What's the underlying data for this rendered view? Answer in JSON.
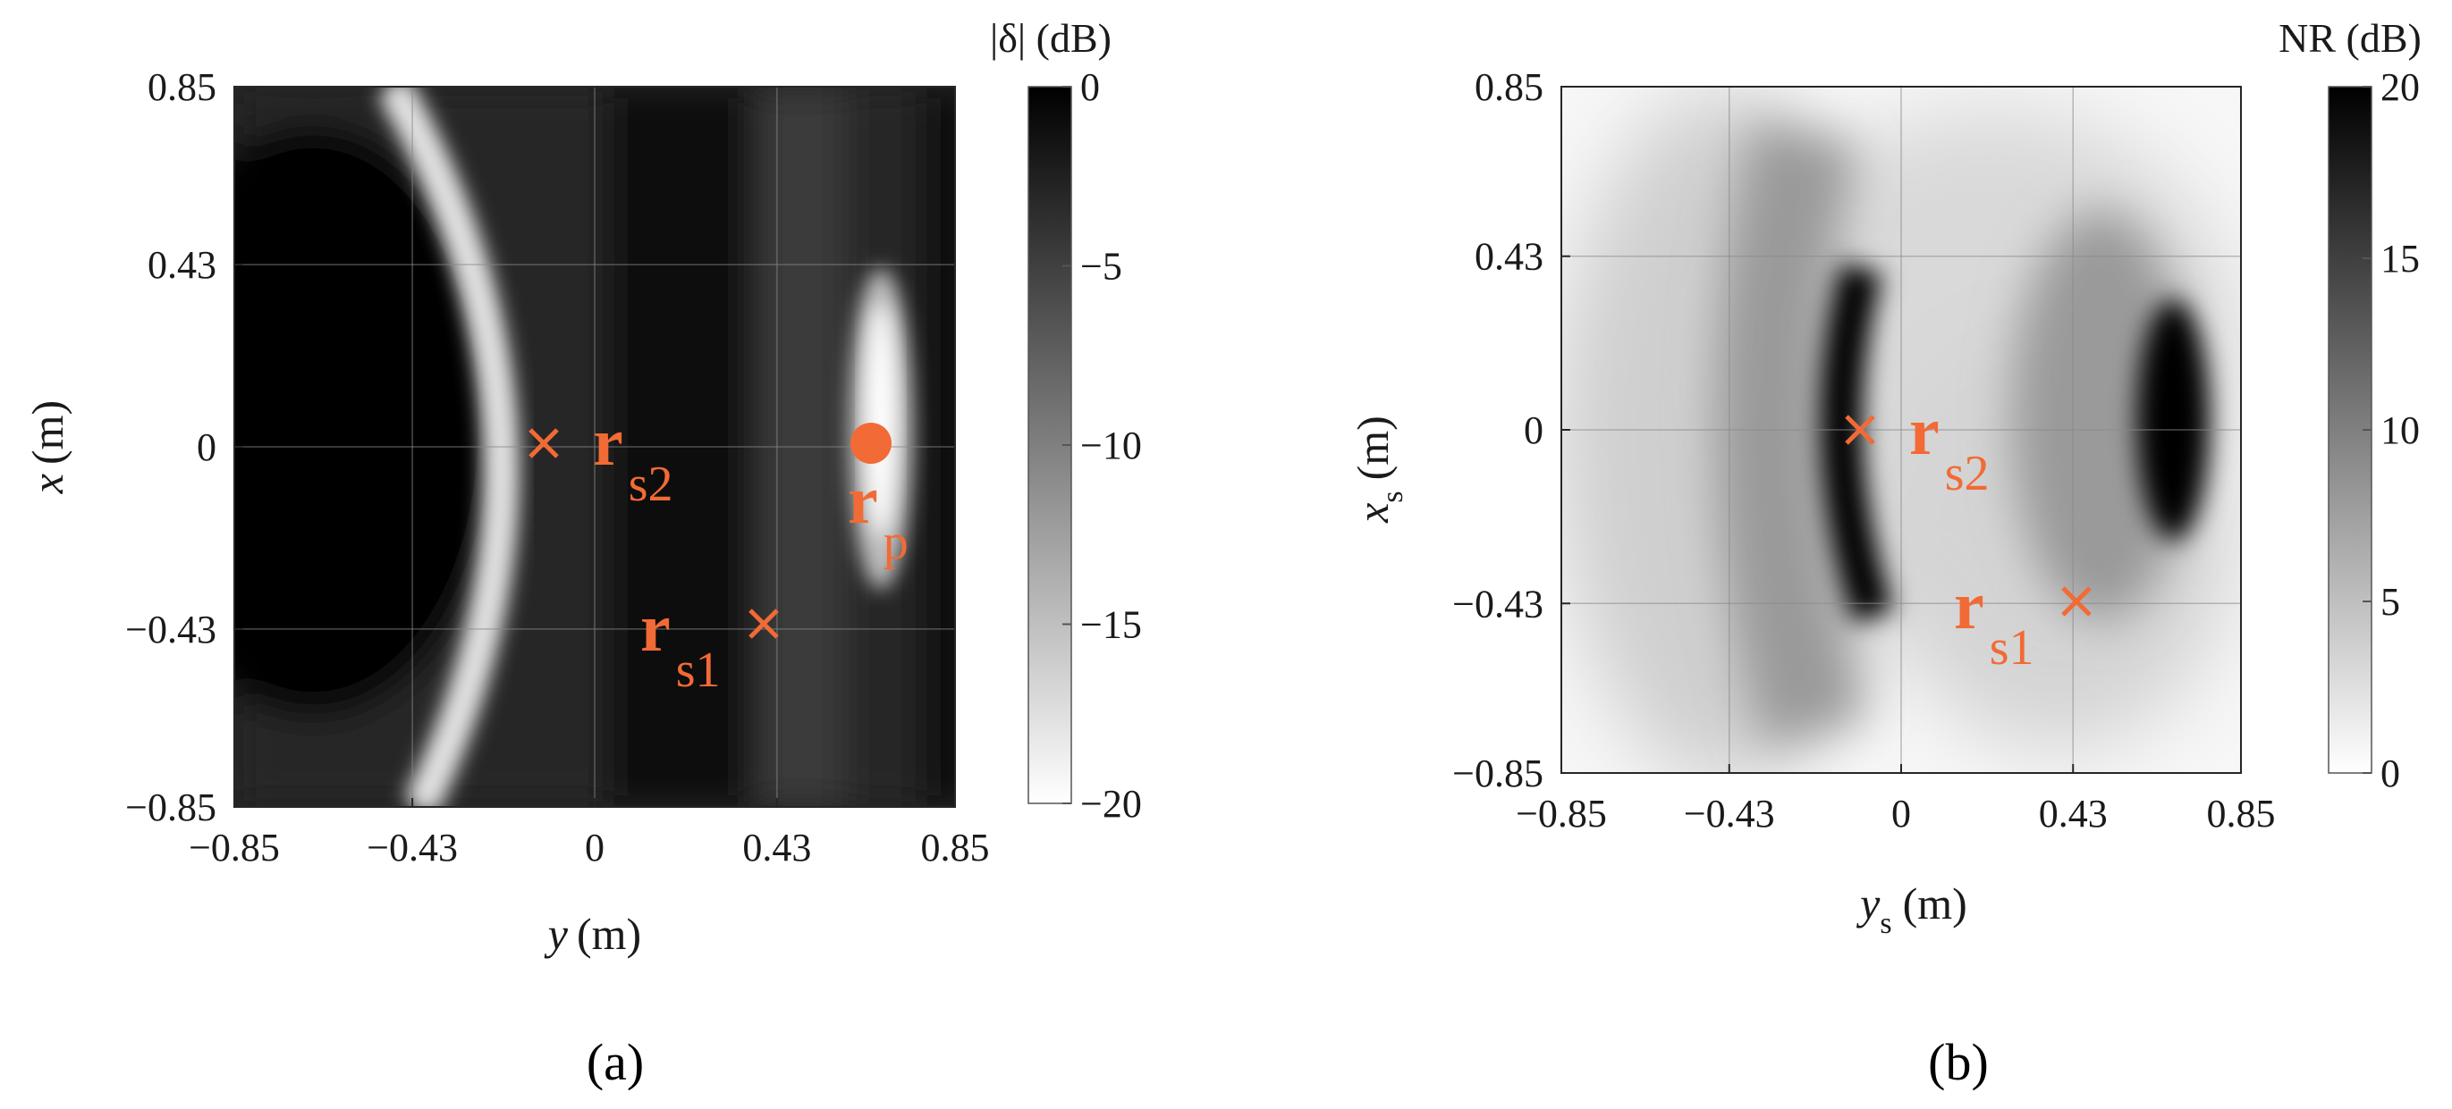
{
  "accent_color": "#f26a35",
  "chart_data": [
    {
      "type": "heatmap",
      "panel_label": "(a)",
      "xlabel_symbol": "y",
      "xlabel_sub": "",
      "xlabel_unit": "(m)",
      "ylabel_symbol": "x",
      "ylabel_sub": "",
      "ylabel_unit": "(m)",
      "xlim": [
        -0.85,
        0.85
      ],
      "ylim": [
        -0.85,
        0.85
      ],
      "xticks": [
        -0.85,
        -0.43,
        0,
        0.43,
        0.85
      ],
      "yticks": [
        -0.85,
        -0.43,
        0,
        0.43,
        0.85
      ],
      "xtick_labels": [
        "−0.85",
        "−0.43",
        "0",
        "0.43",
        "0.85"
      ],
      "ytick_labels": [
        "−0.85",
        "−0.43",
        "0",
        "0.43",
        "0.85"
      ],
      "grid": true,
      "colorbar": {
        "title": "|δ| (dB)",
        "range": [
          -20,
          0
        ],
        "ticks": [
          0,
          -5,
          -10,
          -15,
          -20
        ],
        "tick_labels": [
          "0",
          "−5",
          "−10",
          "−15",
          "−20"
        ],
        "colormap": "white-to-black, black = 0 dB"
      },
      "description": "Dark field with a bright arc through (y≈-0.25..-0.1, x=0) and a bright elongated ellipse around y≈0.66, x≈0.05",
      "markers": [
        {
          "label_main": "r",
          "label_sub": "s2",
          "marker": "x",
          "y": -0.11,
          "x": 0.0
        },
        {
          "label_main": "r",
          "label_sub": "s1",
          "marker": "x",
          "y": 0.41,
          "x": -0.43
        },
        {
          "label_main": "r",
          "label_sub": "p",
          "marker": "dot",
          "y": 0.65,
          "x": 0.0
        }
      ]
    },
    {
      "type": "heatmap",
      "panel_label": "(b)",
      "xlabel_symbol": "y",
      "xlabel_sub": "s",
      "xlabel_unit": "(m)",
      "ylabel_symbol": "x",
      "ylabel_sub": "s",
      "ylabel_unit": "(m)",
      "xlim": [
        -0.85,
        0.85
      ],
      "ylim": [
        -0.85,
        0.85
      ],
      "xticks": [
        -0.85,
        -0.43,
        0,
        0.43,
        0.85
      ],
      "yticks": [
        -0.85,
        -0.43,
        0,
        0.43,
        0.85
      ],
      "xtick_labels": [
        "−0.85",
        "−0.43",
        "0",
        "0.43",
        "0.85"
      ],
      "ytick_labels": [
        "−0.85",
        "−0.43",
        "0",
        "0.43",
        "0.85"
      ],
      "grid": true,
      "colorbar": {
        "title": "NR (dB)",
        "range": [
          0,
          20
        ],
        "ticks": [
          20,
          15,
          10,
          5,
          0
        ],
        "tick_labels": [
          "20",
          "15",
          "10",
          "5",
          "0"
        ],
        "colormap": "white-to-black, black = 20 dB"
      },
      "description": "Light field with a dark arc near y≈-0.1 and a dark elongated ellipse around y≈0.65, x≈0",
      "markers": [
        {
          "label_main": "r",
          "label_sub": "s2",
          "marker": "x",
          "y": -0.11,
          "x": 0.0
        },
        {
          "label_main": "r",
          "label_sub": "s1",
          "marker": "x",
          "y": 0.41,
          "x": -0.43
        }
      ]
    }
  ]
}
